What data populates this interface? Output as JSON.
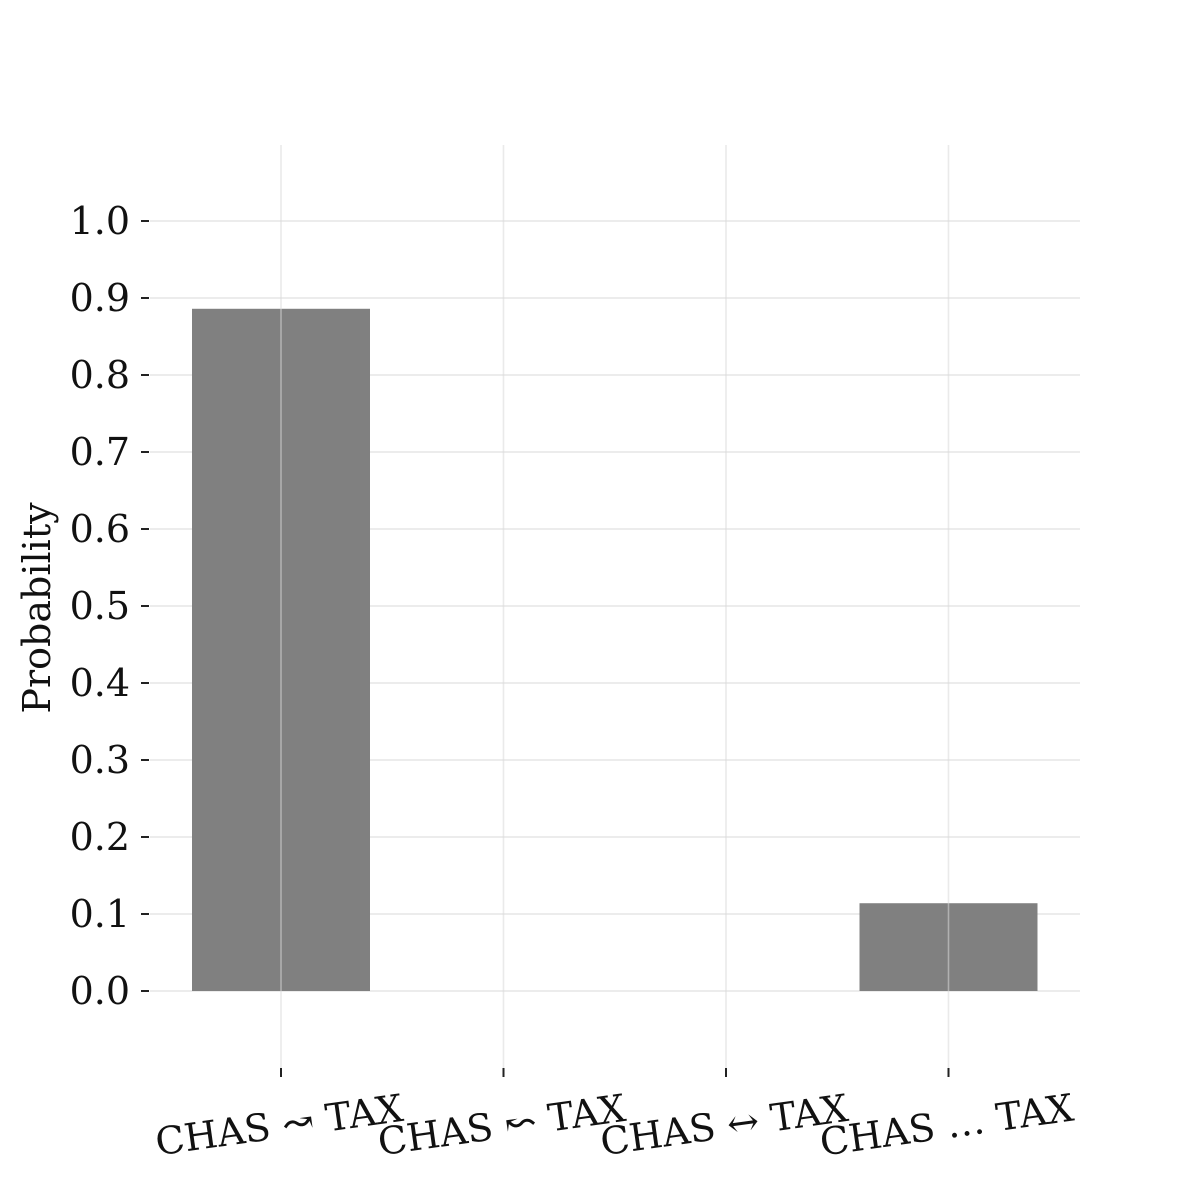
{
  "chart_data": {
    "type": "bar",
    "categories": [
      "CHAS ↝ TAX",
      "CHAS ↜ TAX",
      "CHAS ↔ TAX",
      "CHAS … TAX"
    ],
    "values": [
      0.886,
      0.0,
      0.0,
      0.114
    ],
    "title": "",
    "xlabel": "",
    "ylabel": "Probability",
    "ylim": [
      -0.1,
      1.1
    ],
    "yticks": [
      0.0,
      0.1,
      0.2,
      0.3,
      0.4,
      0.5,
      0.6,
      0.7,
      0.8,
      0.9,
      1.0
    ],
    "ytick_labels": [
      "0.0",
      "0.1",
      "0.2",
      "0.3",
      "0.4",
      "0.5",
      "0.6",
      "0.7",
      "0.8",
      "0.9",
      "1.0"
    ],
    "grid": true,
    "bar_color": "#808080",
    "grid_color": "#e6e6e6",
    "xtick_rotation_deg": -8
  }
}
